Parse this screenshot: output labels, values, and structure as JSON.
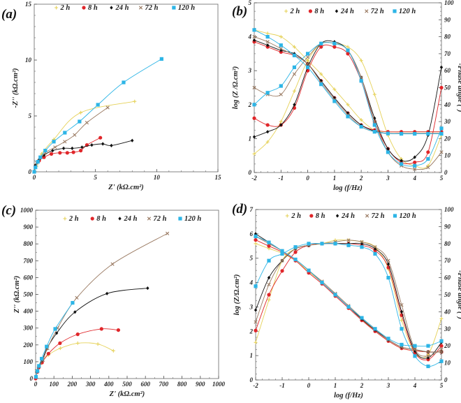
{
  "series_styles": [
    {
      "name": "2 h",
      "color": "#e6d25a",
      "marker": "plus"
    },
    {
      "name": "8 h",
      "color": "#e0262a",
      "marker": "circle"
    },
    {
      "name": "24 h",
      "color": "#111111",
      "marker": "diamond"
    },
    {
      "name": "72 h",
      "color": "#9a7a62",
      "marker": "cross"
    },
    {
      "name": "120 h",
      "color": "#2db5e6",
      "marker": "square"
    }
  ],
  "chart_data": [
    {
      "panel_label": "(a)",
      "type": "scatter",
      "xlabel": "Z' (kΩ.cm²)",
      "ylabel": "-Z'' (kΩ.cm²)",
      "xlim": [
        0,
        15
      ],
      "ylim": [
        0,
        15
      ],
      "xticks": [
        0,
        5,
        10,
        15
      ],
      "yticks": [
        0,
        5,
        10,
        15
      ],
      "legend": "top",
      "grid": false,
      "series": [
        {
          "name": "2 h",
          "points": [
            [
              0,
              0
            ],
            [
              0.2,
              0.5
            ],
            [
              0.6,
              1.6
            ],
            [
              1.6,
              2.9
            ],
            [
              3.8,
              5.3
            ],
            [
              8.2,
              6.3
            ]
          ]
        },
        {
          "name": "8 h",
          "points": [
            [
              0.1,
              0.5
            ],
            [
              0.4,
              1.0
            ],
            [
              0.8,
              1.3
            ],
            [
              1.4,
              1.6
            ],
            [
              2.1,
              1.7
            ],
            [
              2.7,
              1.7
            ],
            [
              3.2,
              1.75
            ],
            [
              3.8,
              1.9
            ],
            [
              4.3,
              2.4
            ],
            [
              5.4,
              3.05
            ]
          ]
        },
        {
          "name": "24 h",
          "points": [
            [
              0.1,
              0.6
            ],
            [
              0.4,
              1.1
            ],
            [
              0.8,
              1.5
            ],
            [
              1.5,
              1.9
            ],
            [
              2.4,
              2.1
            ],
            [
              3.1,
              2.1
            ],
            [
              3.9,
              2.2
            ],
            [
              4.7,
              2.4
            ],
            [
              5.6,
              2.5
            ],
            [
              6.3,
              2.35
            ],
            [
              8.0,
              2.8
            ]
          ]
        },
        {
          "name": "72 h",
          "points": [
            [
              0.2,
              0.8
            ],
            [
              0.9,
              1.7
            ],
            [
              1.7,
              2.2
            ],
            [
              2.5,
              2.7
            ],
            [
              3.3,
              3.3
            ],
            [
              4.3,
              4.4
            ],
            [
              6.0,
              5.75
            ]
          ]
        },
        {
          "name": "120 h",
          "points": [
            [
              0,
              0
            ],
            [
              0.1,
              0.4
            ],
            [
              0.3,
              0.9
            ],
            [
              0.5,
              1.3
            ],
            [
              0.9,
              1.9
            ],
            [
              1.6,
              2.7
            ],
            [
              2.5,
              3.5
            ],
            [
              3.7,
              4.5
            ],
            [
              5.2,
              6.0
            ],
            [
              7.3,
              8.0
            ],
            [
              10.4,
              10.1
            ]
          ]
        }
      ]
    },
    {
      "panel_label": "(b)",
      "type": "line",
      "xlabel": "log (f/Hz)",
      "ylabel": "log (Z /Ω.cm²)",
      "y2label": "-Phase angle (°)",
      "xlim": [
        -2,
        5
      ],
      "ylim": [
        0,
        5
      ],
      "y2lim": [
        0,
        100
      ],
      "xticks": [
        -2,
        -1,
        0,
        1,
        2,
        3,
        4,
        5
      ],
      "yticks": [
        0,
        1,
        2,
        3,
        4,
        5
      ],
      "y2ticks": [
        0,
        10,
        20,
        30,
        40,
        50,
        60,
        70,
        80,
        90,
        100
      ],
      "legend": "top",
      "grid": false,
      "x": [
        -2,
        -1.5,
        -1,
        -0.5,
        0,
        0.5,
        1,
        1.5,
        2,
        2.5,
        3,
        3.5,
        4,
        4.5,
        5
      ],
      "series": [
        {
          "name": "2 h",
          "logZ": [
            4.2,
            4.1,
            4.0,
            3.7,
            3.3,
            2.9,
            2.45,
            2.0,
            1.55,
            1.25,
            1.2,
            1.2,
            1.2,
            1.2,
            1.2
          ],
          "phase": [
            11,
            18,
            30,
            48,
            66,
            76,
            76,
            74,
            66,
            46,
            22,
            8,
            4,
            4,
            22
          ]
        },
        {
          "name": "8 h",
          "logZ": [
            3.85,
            3.7,
            3.55,
            3.45,
            3.2,
            2.7,
            2.2,
            1.75,
            1.4,
            1.25,
            1.2,
            1.2,
            1.2,
            1.2,
            1.2
          ],
          "phase": [
            32,
            28,
            28,
            38,
            60,
            74,
            74,
            70,
            54,
            30,
            14,
            6,
            6,
            12,
            50
          ]
        },
        {
          "name": "24 h",
          "logZ": [
            3.9,
            3.75,
            3.6,
            3.5,
            3.2,
            2.7,
            2.2,
            1.75,
            1.4,
            1.22,
            1.15,
            1.15,
            1.15,
            1.15,
            1.15
          ],
          "phase": [
            21,
            24,
            28,
            40,
            62,
            76,
            77,
            72,
            56,
            32,
            14,
            7,
            9,
            22,
            62
          ]
        },
        {
          "name": "72 h",
          "logZ": [
            4.0,
            3.85,
            3.65,
            3.45,
            3.2,
            2.65,
            2.15,
            1.7,
            1.35,
            1.2,
            1.15,
            1.15,
            1.15,
            1.15,
            1.15
          ],
          "phase": [
            50,
            46,
            46,
            58,
            68,
            76,
            76,
            72,
            56,
            30,
            12,
            4,
            2,
            3,
            12
          ]
        },
        {
          "name": "120 h",
          "logZ": [
            4.2,
            4.0,
            3.75,
            3.45,
            3.1,
            2.6,
            2.1,
            1.65,
            1.35,
            1.2,
            1.15,
            1.14,
            1.14,
            1.14,
            1.14
          ],
          "phase": [
            40,
            47,
            51,
            62,
            70,
            76,
            76,
            72,
            54,
            28,
            12,
            5,
            4,
            8,
            26
          ]
        }
      ]
    },
    {
      "panel_label": "(c)",
      "type": "scatter",
      "xlabel": "Z' (kΩ.cm²)",
      "ylabel": "Z'' (kΩ.cm²)",
      "xlim": [
        0,
        1000
      ],
      "ylim": [
        0,
        1000
      ],
      "xticks": [
        0,
        100,
        200,
        300,
        400,
        500,
        600,
        700,
        800,
        900,
        1000
      ],
      "yticks": [
        0,
        100,
        200,
        300,
        400,
        500,
        600,
        700,
        800,
        900,
        1000
      ],
      "legend": "top",
      "grid": false,
      "series": [
        {
          "name": "2 h",
          "points": [
            [
              0,
              0
            ],
            [
              10,
              40
            ],
            [
              30,
              90
            ],
            [
              70,
              140
            ],
            [
              135,
              180
            ],
            [
              230,
              210
            ],
            [
              340,
              205
            ],
            [
              425,
              165
            ]
          ]
        },
        {
          "name": "8 h",
          "points": [
            [
              0,
              0
            ],
            [
              10,
              40
            ],
            [
              17,
              65
            ],
            [
              35,
              95
            ],
            [
              70,
              148
            ],
            [
              133,
              210
            ],
            [
              230,
              263
            ],
            [
              360,
              295
            ],
            [
              452,
              288
            ]
          ]
        },
        {
          "name": "24 h",
          "points": [
            [
              5,
              40
            ],
            [
              15,
              70
            ],
            [
              35,
              105
            ],
            [
              60,
              175
            ],
            [
              115,
              270
            ],
            [
              215,
              395
            ],
            [
              390,
              505
            ],
            [
              612,
              537
            ]
          ]
        },
        {
          "name": "72 h",
          "points": [
            [
              5,
              45
            ],
            [
              20,
              75
            ],
            [
              40,
              110
            ],
            [
              65,
              180
            ],
            [
              120,
              300
            ],
            [
              225,
              480
            ],
            [
              420,
              680
            ],
            [
              720,
              862
            ]
          ]
        },
        {
          "name": "120 h",
          "points": [
            [
              2,
              10
            ],
            [
              10,
              45
            ],
            [
              18,
              75
            ],
            [
              33,
              118
            ],
            [
              60,
              190
            ],
            [
              107,
              295
            ],
            [
              202,
              450
            ]
          ]
        }
      ]
    },
    {
      "panel_label": "(d)",
      "type": "line",
      "xlabel": "log  (f/Hz)",
      "ylabel": "log (Z/Ω.cm²)",
      "y2label": "-Phase angle (°)",
      "xlim": [
        -2,
        5
      ],
      "ylim": [
        0,
        7
      ],
      "y2lim": [
        0,
        100
      ],
      "xticks": [
        -2,
        -1,
        0,
        1,
        2,
        3,
        4,
        5
      ],
      "yticks": [
        0,
        1,
        2,
        3,
        4,
        5,
        6,
        7
      ],
      "y2ticks": [
        0,
        10,
        20,
        30,
        40,
        50,
        60,
        70,
        80,
        90,
        100
      ],
      "legend": "top",
      "grid": false,
      "x": [
        -2,
        -1.5,
        -1,
        -0.5,
        0,
        0.5,
        1,
        1.5,
        2,
        2.5,
        3,
        3.5,
        4,
        4.5,
        5
      ],
      "series": [
        {
          "name": "2 h",
          "logZ": [
            5.6,
            5.4,
            5.2,
            4.9,
            4.45,
            4.0,
            3.5,
            3.0,
            2.5,
            2.0,
            1.6,
            1.3,
            1.2,
            1.15,
            1.15
          ],
          "phase": [
            22,
            47,
            70,
            77,
            79,
            80,
            82,
            82,
            81,
            78,
            65,
            35,
            16,
            15,
            36
          ]
        },
        {
          "name": "8 h",
          "logZ": [
            5.75,
            5.5,
            5.25,
            4.9,
            4.4,
            3.95,
            3.45,
            2.95,
            2.45,
            2.0,
            1.6,
            1.3,
            1.2,
            1.15,
            1.15
          ],
          "phase": [
            29,
            50,
            64,
            75,
            79,
            80,
            80,
            80,
            79,
            76,
            66,
            38,
            16,
            12,
            20
          ]
        },
        {
          "name": "24 h",
          "logZ": [
            6.0,
            5.65,
            5.3,
            4.95,
            4.5,
            4.0,
            3.5,
            3.0,
            2.5,
            2.05,
            1.65,
            1.35,
            1.25,
            1.15,
            1.15
          ],
          "phase": [
            41,
            60,
            70,
            77,
            79,
            80,
            80,
            80,
            80,
            77,
            68,
            40,
            17,
            13,
            22
          ]
        },
        {
          "name": "72 h",
          "logZ": [
            5.9,
            5.6,
            5.3,
            4.95,
            4.5,
            4.05,
            3.55,
            3.05,
            2.55,
            2.1,
            1.65,
            1.35,
            1.25,
            1.15,
            1.15
          ],
          "phase": [
            34,
            56,
            70,
            77,
            79,
            80,
            81,
            82,
            81,
            78,
            70,
            44,
            18,
            14,
            18
          ]
        },
        {
          "name": "120 h",
          "logZ": [
            5.9,
            5.65,
            5.3,
            4.95,
            4.5,
            4.0,
            3.5,
            3.0,
            2.55,
            2.1,
            1.7,
            1.45,
            1.4,
            1.4,
            1.6
          ],
          "phase": [
            55,
            70,
            74,
            78,
            80,
            80,
            80,
            79,
            78,
            74,
            60,
            30,
            14,
            8,
            11
          ]
        }
      ]
    }
  ]
}
